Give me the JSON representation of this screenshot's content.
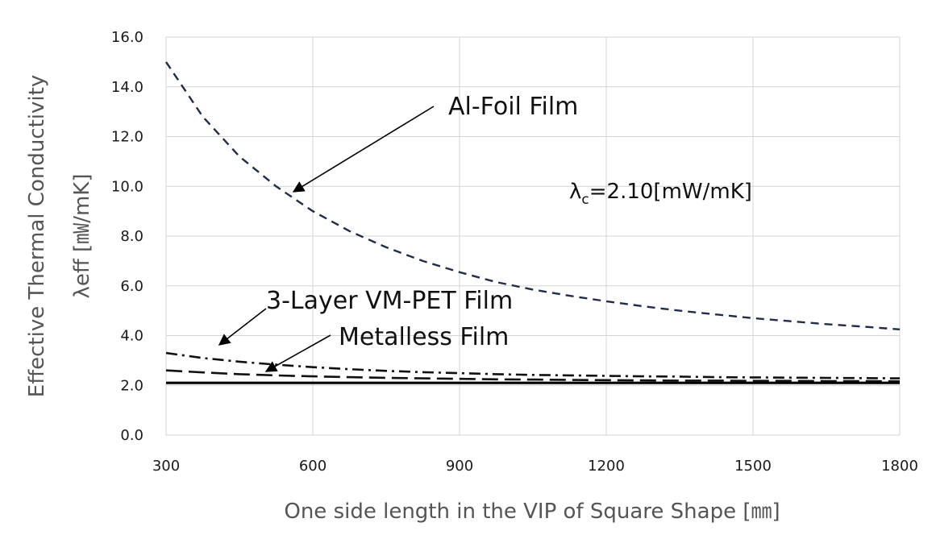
{
  "chart_data": {
    "type": "line",
    "xlabel": "One side length in the VIP of  Square Shape [㎜]",
    "ylabel_line1": "Effective Thermal Conductivity",
    "ylabel_line2": "λeff  [㎽/mK]",
    "xlim": [
      300,
      1800
    ],
    "ylim": [
      0,
      16
    ],
    "x_ticks": [
      300,
      600,
      900,
      1200,
      1500,
      1800
    ],
    "y_ticks": [
      "0.0",
      "2.0",
      "4.0",
      "6.0",
      "8.0",
      "10.0",
      "12.0",
      "14.0",
      "16.0"
    ],
    "grid": true,
    "x": [
      300,
      375,
      450,
      525,
      600,
      675,
      750,
      825,
      900,
      975,
      1050,
      1125,
      1200,
      1275,
      1350,
      1425,
      1500,
      1575,
      1650,
      1725,
      1800
    ],
    "series": [
      {
        "name": "Al-Foil Film",
        "style": "dashed",
        "color": "#1f2d4d",
        "values": [
          15.0,
          12.8,
          11.2,
          10.0,
          9.0,
          8.2,
          7.55,
          7.0,
          6.55,
          6.15,
          5.85,
          5.6,
          5.38,
          5.18,
          5.0,
          4.85,
          4.7,
          4.58,
          4.46,
          4.36,
          4.25
        ]
      },
      {
        "name": "3-Layer VM-PET Film",
        "style": "dashdot",
        "color": "#111111",
        "values": [
          3.3,
          3.1,
          2.95,
          2.83,
          2.73,
          2.65,
          2.58,
          2.53,
          2.49,
          2.45,
          2.42,
          2.4,
          2.38,
          2.36,
          2.35,
          2.33,
          2.32,
          2.31,
          2.3,
          2.29,
          2.28
        ]
      },
      {
        "name": "Metalless  Film",
        "style": "longdash",
        "color": "#111111",
        "values": [
          2.6,
          2.52,
          2.45,
          2.4,
          2.36,
          2.33,
          2.3,
          2.28,
          2.26,
          2.24,
          2.23,
          2.22,
          2.21,
          2.2,
          2.19,
          2.19,
          2.18,
          2.18,
          2.17,
          2.17,
          2.16
        ]
      },
      {
        "name": "λc",
        "style": "solid",
        "color": "#000000",
        "values": [
          2.1,
          2.1,
          2.1,
          2.1,
          2.1,
          2.1,
          2.1,
          2.1,
          2.1,
          2.1,
          2.1,
          2.1,
          2.1,
          2.1,
          2.1,
          2.1,
          2.1,
          2.1,
          2.1,
          2.1,
          2.1
        ]
      }
    ],
    "annotations": {
      "al_foil": "Al-Foil Film",
      "vmpet": "3-Layer VM-PET Film",
      "metalless": "Metalless  Film",
      "lambda_c_symbol": "λ",
      "lambda_c_sub": "c",
      "lambda_c_value": "=2.10[mW/mK]"
    }
  }
}
